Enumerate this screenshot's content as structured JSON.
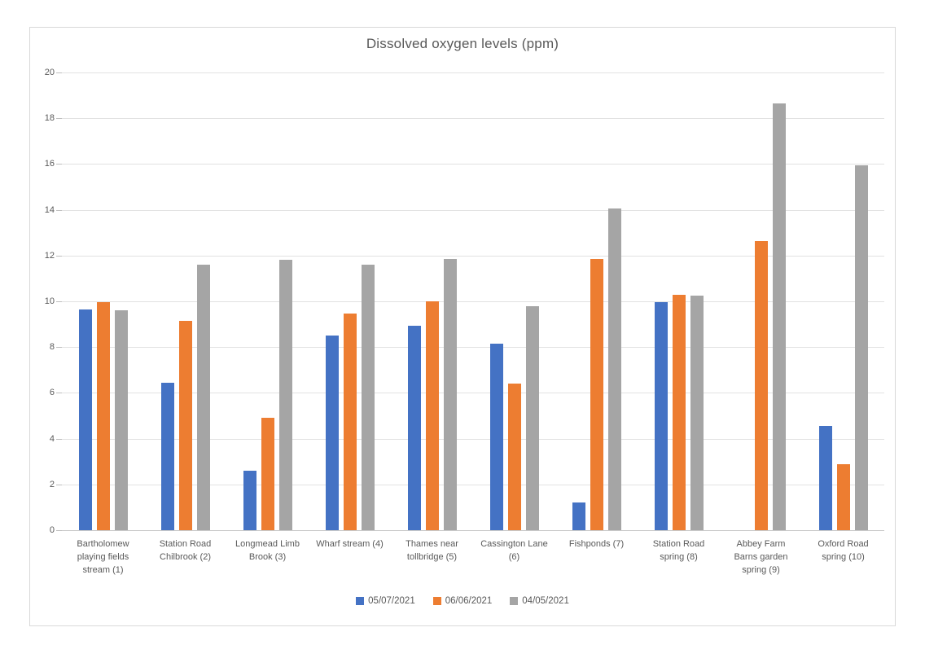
{
  "chart_data": {
    "type": "bar",
    "title": "Dissolved oxygen levels (ppm)",
    "categories": [
      "Bartholomew playing fields stream (1)",
      "Station Road Chilbrook (2)",
      "Longmead Limb Brook (3)",
      "Wharf stream (4)",
      "Thames near tollbridge (5)",
      "Cassington Lane (6)",
      "Fishponds (7)",
      "Station Road spring (8)",
      "Abbey Farm Barns garden spring (9)",
      "Oxford Road spring (10)"
    ],
    "series": [
      {
        "name": "05/07/2021",
        "color": "#4472c4",
        "values": [
          9.65,
          6.45,
          2.6,
          8.5,
          8.95,
          8.15,
          1.2,
          9.95,
          0,
          4.55
        ]
      },
      {
        "name": "06/06/2021",
        "color": "#ed7d31",
        "values": [
          9.95,
          9.15,
          4.9,
          9.45,
          10.0,
          6.4,
          11.85,
          10.3,
          12.65,
          2.9
        ]
      },
      {
        "name": "04/05/2021",
        "color": "#a5a5a5",
        "values": [
          9.6,
          11.6,
          11.8,
          11.6,
          11.85,
          9.8,
          14.05,
          10.25,
          18.65,
          15.95
        ]
      }
    ],
    "ylim": [
      0,
      20
    ],
    "yticks": [
      0,
      2,
      4,
      6,
      8,
      10,
      12,
      14,
      16,
      18,
      20
    ],
    "xlabel": "",
    "ylabel": "",
    "grid": true,
    "legend_position": "bottom"
  },
  "colors": {
    "text": "#595959",
    "gridline": "#e2e2e2",
    "frame_border": "#d9d9d9",
    "background": "#ffffff"
  }
}
